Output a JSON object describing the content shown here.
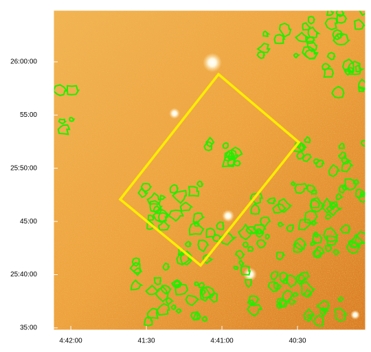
{
  "chart_data": {
    "type": "image",
    "xlim": [
      4.7019,
      4.6675
    ],
    "ylim": [
      25.58,
      26.0807
    ],
    "xticks": [
      {
        "value": 4.7,
        "label": "4:42:00"
      },
      {
        "value": 4.691667,
        "label": "41:30"
      },
      {
        "value": 4.683333,
        "label": "4:41:00"
      },
      {
        "value": 4.675,
        "label": "40:30"
      }
    ],
    "yticks": [
      {
        "value": 26.0,
        "label": "26:00:00"
      },
      {
        "value": 25.916667,
        "label": "55:00"
      },
      {
        "value": 25.833333,
        "label": "25:50:00"
      },
      {
        "value": 25.75,
        "label": "45:00"
      },
      {
        "value": 25.666667,
        "label": "25:40:00"
      },
      {
        "value": 25.583333,
        "label": "35:00"
      }
    ]
  }
}
